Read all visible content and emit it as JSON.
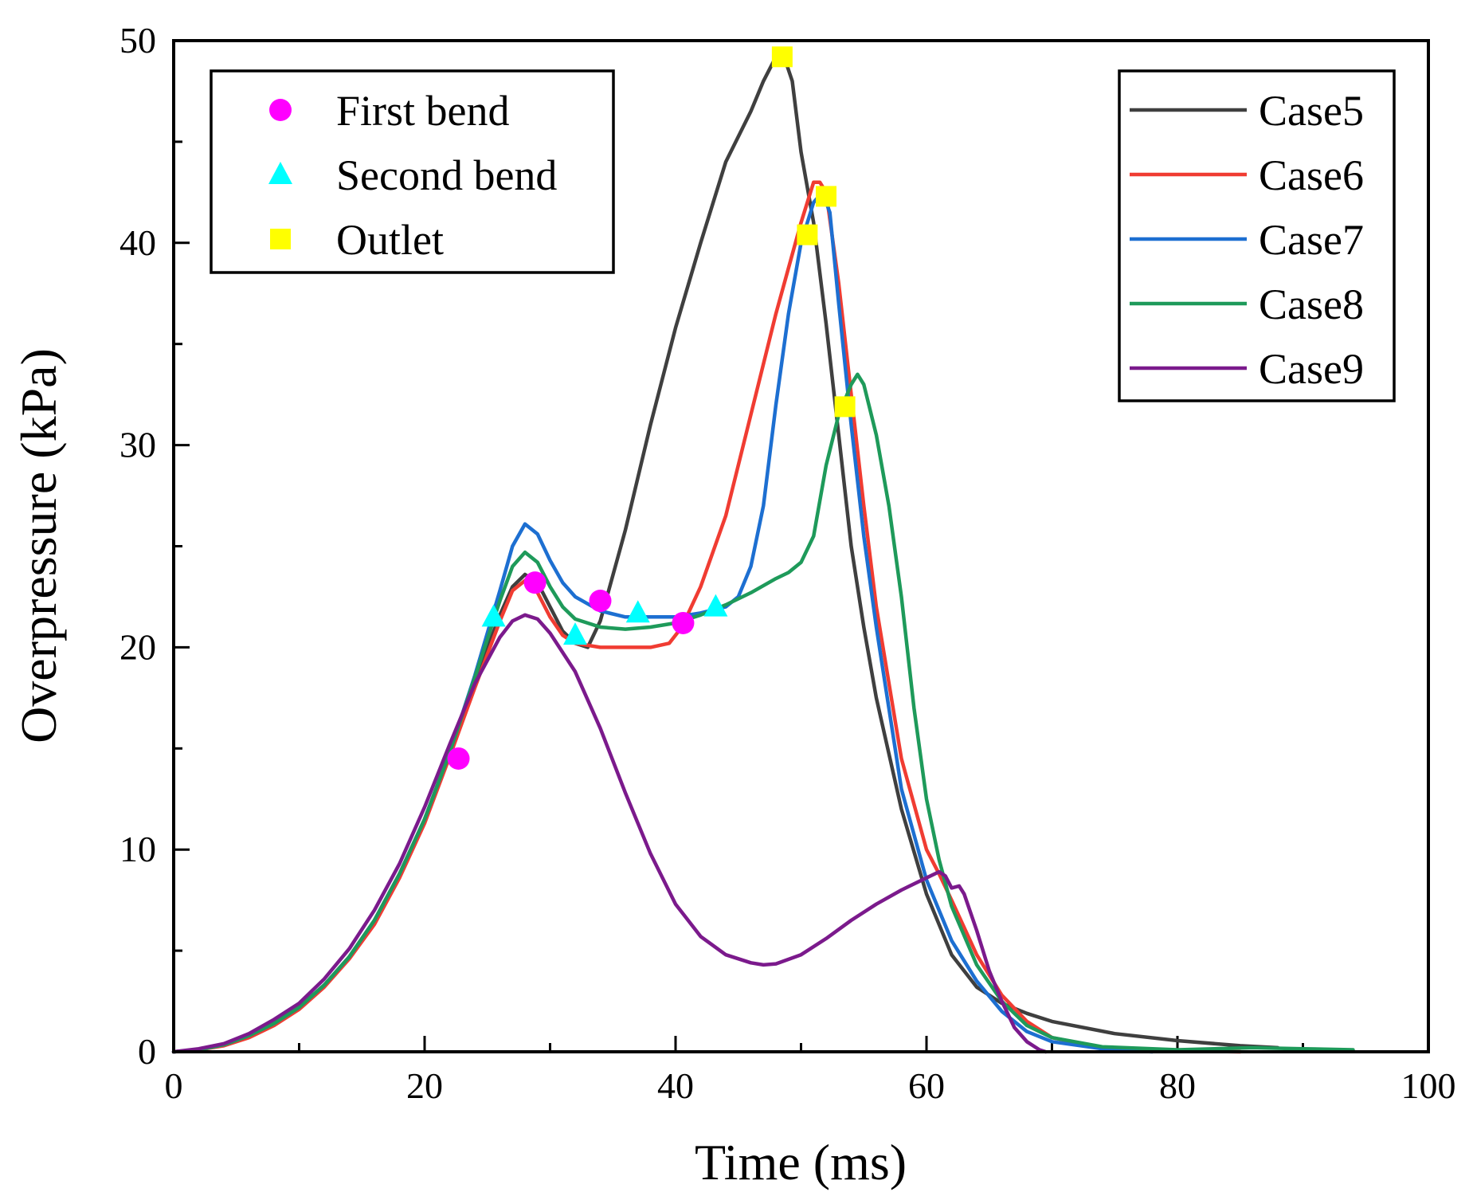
{
  "chart_data": {
    "type": "line",
    "title": "",
    "xlabel": "Time (ms)",
    "ylabel": "Overpressure (kPa)",
    "xlim": [
      0,
      100
    ],
    "ylim": [
      0,
      50
    ],
    "xticks": [
      0,
      20,
      40,
      60,
      80,
      100
    ],
    "yticks": [
      0,
      10,
      20,
      30,
      40,
      50
    ],
    "grid": false,
    "series": [
      {
        "name": "Case5",
        "color": "#3f3f3f",
        "points": [
          [
            0,
            0
          ],
          [
            2,
            0.1
          ],
          [
            4,
            0.35
          ],
          [
            6,
            0.8
          ],
          [
            8,
            1.4
          ],
          [
            10,
            2.2
          ],
          [
            12,
            3.3
          ],
          [
            14,
            4.7
          ],
          [
            16,
            6.5
          ],
          [
            18,
            8.8
          ],
          [
            20,
            11.5
          ],
          [
            22,
            14.8
          ],
          [
            24,
            18.3
          ],
          [
            26,
            21.6
          ],
          [
            27,
            23.0
          ],
          [
            28,
            23.6
          ],
          [
            29,
            23.2
          ],
          [
            30,
            22.0
          ],
          [
            31,
            20.8
          ],
          [
            32,
            20.2
          ],
          [
            33,
            20.0
          ],
          [
            34,
            21.3
          ],
          [
            36,
            25.8
          ],
          [
            38,
            31.0
          ],
          [
            40,
            35.8
          ],
          [
            42,
            40.0
          ],
          [
            44,
            44.0
          ],
          [
            46,
            46.5
          ],
          [
            47,
            48.0
          ],
          [
            48,
            49.2
          ],
          [
            48.6,
            49.3
          ],
          [
            49.3,
            48.0
          ],
          [
            50,
            44.5
          ],
          [
            51,
            41.0
          ],
          [
            52,
            36.0
          ],
          [
            53,
            30.5
          ],
          [
            54,
            25.0
          ],
          [
            55,
            21.0
          ],
          [
            56,
            17.5
          ],
          [
            58,
            12.0
          ],
          [
            60,
            7.8
          ],
          [
            62,
            4.8
          ],
          [
            64,
            3.2
          ],
          [
            66,
            2.4
          ],
          [
            68,
            1.9
          ],
          [
            70,
            1.5
          ],
          [
            75,
            0.9
          ],
          [
            80,
            0.55
          ],
          [
            85,
            0.3
          ],
          [
            88,
            0.2
          ]
        ]
      },
      {
        "name": "Case6",
        "color": "#f03c32",
        "points": [
          [
            0,
            0
          ],
          [
            2,
            0.1
          ],
          [
            4,
            0.3
          ],
          [
            6,
            0.7
          ],
          [
            8,
            1.3
          ],
          [
            10,
            2.1
          ],
          [
            12,
            3.2
          ],
          [
            14,
            4.6
          ],
          [
            16,
            6.3
          ],
          [
            18,
            8.6
          ],
          [
            20,
            11.3
          ],
          [
            22,
            14.6
          ],
          [
            24,
            18.0
          ],
          [
            26,
            21.3
          ],
          [
            27,
            22.8
          ],
          [
            28,
            23.3
          ],
          [
            29,
            22.7
          ],
          [
            30,
            21.5
          ],
          [
            31,
            20.6
          ],
          [
            32,
            20.2
          ],
          [
            34,
            20.0
          ],
          [
            36,
            20.0
          ],
          [
            38,
            20.0
          ],
          [
            39.5,
            20.2
          ],
          [
            40.5,
            21.0
          ],
          [
            42,
            23.0
          ],
          [
            44,
            26.5
          ],
          [
            46,
            31.5
          ],
          [
            48,
            36.5
          ],
          [
            50,
            41.0
          ],
          [
            51,
            43.0
          ],
          [
            51.5,
            43.0
          ],
          [
            52,
            42.5
          ],
          [
            53,
            38.0
          ],
          [
            54,
            32.5
          ],
          [
            55,
            27.0
          ],
          [
            56,
            22.0
          ],
          [
            58,
            14.5
          ],
          [
            60,
            10.0
          ],
          [
            61,
            8.8
          ],
          [
            62,
            7.5
          ],
          [
            64,
            4.8
          ],
          [
            66,
            2.8
          ],
          [
            68,
            1.5
          ],
          [
            70,
            0.7
          ],
          [
            74,
            0.2
          ],
          [
            80,
            0.05
          ],
          [
            85,
            0.0
          ]
        ]
      },
      {
        "name": "Case7",
        "color": "#1d6fd1",
        "points": [
          [
            0,
            0
          ],
          [
            2,
            0.1
          ],
          [
            4,
            0.35
          ],
          [
            6,
            0.8
          ],
          [
            8,
            1.4
          ],
          [
            10,
            2.2
          ],
          [
            12,
            3.3
          ],
          [
            14,
            4.7
          ],
          [
            16,
            6.5
          ],
          [
            18,
            8.8
          ],
          [
            20,
            11.5
          ],
          [
            22,
            14.8
          ],
          [
            24,
            18.6
          ],
          [
            26,
            22.8
          ],
          [
            27,
            25.0
          ],
          [
            28,
            26.1
          ],
          [
            29,
            25.6
          ],
          [
            30,
            24.3
          ],
          [
            31,
            23.2
          ],
          [
            32,
            22.5
          ],
          [
            34,
            21.8
          ],
          [
            36,
            21.5
          ],
          [
            38,
            21.5
          ],
          [
            40,
            21.5
          ],
          [
            42,
            21.7
          ],
          [
            44,
            22.0
          ],
          [
            45,
            22.5
          ],
          [
            46,
            24.0
          ],
          [
            47,
            27.0
          ],
          [
            48,
            32.0
          ],
          [
            49,
            36.5
          ],
          [
            50,
            40.0
          ],
          [
            51,
            42.0
          ],
          [
            51.7,
            42.5
          ],
          [
            52.3,
            41.5
          ],
          [
            53,
            37.0
          ],
          [
            54,
            31.0
          ],
          [
            55,
            25.5
          ],
          [
            56,
            21.0
          ],
          [
            58,
            13.0
          ],
          [
            60,
            8.5
          ],
          [
            62,
            5.5
          ],
          [
            64,
            3.5
          ],
          [
            66,
            2.0
          ],
          [
            68,
            1.0
          ],
          [
            70,
            0.5
          ],
          [
            74,
            0.15
          ],
          [
            78,
            0.0
          ]
        ]
      },
      {
        "name": "Case8",
        "color": "#1e9a5a",
        "points": [
          [
            0,
            0
          ],
          [
            2,
            0.1
          ],
          [
            4,
            0.35
          ],
          [
            6,
            0.8
          ],
          [
            8,
            1.4
          ],
          [
            10,
            2.2
          ],
          [
            12,
            3.3
          ],
          [
            14,
            4.7
          ],
          [
            16,
            6.5
          ],
          [
            18,
            8.8
          ],
          [
            20,
            11.5
          ],
          [
            22,
            14.8
          ],
          [
            24,
            18.5
          ],
          [
            26,
            22.3
          ],
          [
            27,
            24.0
          ],
          [
            28,
            24.7
          ],
          [
            29,
            24.2
          ],
          [
            30,
            23.0
          ],
          [
            31,
            22.0
          ],
          [
            32,
            21.4
          ],
          [
            34,
            21.0
          ],
          [
            36,
            20.9
          ],
          [
            38,
            21.0
          ],
          [
            40,
            21.2
          ],
          [
            42,
            21.6
          ],
          [
            44,
            22.1
          ],
          [
            46,
            22.7
          ],
          [
            48,
            23.4
          ],
          [
            49,
            23.7
          ],
          [
            50,
            24.2
          ],
          [
            51,
            25.5
          ],
          [
            52,
            29.0
          ],
          [
            53,
            31.5
          ],
          [
            54,
            33.0
          ],
          [
            54.5,
            33.5
          ],
          [
            55,
            33.0
          ],
          [
            56,
            30.5
          ],
          [
            57,
            27.0
          ],
          [
            58,
            22.5
          ],
          [
            59,
            17.0
          ],
          [
            60,
            12.5
          ],
          [
            61,
            9.5
          ],
          [
            62,
            7.2
          ],
          [
            64,
            4.3
          ],
          [
            66,
            2.5
          ],
          [
            68,
            1.3
          ],
          [
            70,
            0.7
          ],
          [
            74,
            0.25
          ],
          [
            80,
            0.1
          ],
          [
            86,
            0.2
          ],
          [
            90,
            0.15
          ],
          [
            94,
            0.1
          ]
        ]
      },
      {
        "name": "Case9",
        "color": "#7b1a8c",
        "points": [
          [
            0,
            0
          ],
          [
            2,
            0.15
          ],
          [
            4,
            0.4
          ],
          [
            6,
            0.9
          ],
          [
            8,
            1.6
          ],
          [
            10,
            2.4
          ],
          [
            12,
            3.6
          ],
          [
            14,
            5.1
          ],
          [
            16,
            7.0
          ],
          [
            18,
            9.3
          ],
          [
            20,
            12.1
          ],
          [
            22,
            15.2
          ],
          [
            24,
            18.2
          ],
          [
            26,
            20.5
          ],
          [
            27,
            21.3
          ],
          [
            28,
            21.6
          ],
          [
            29,
            21.4
          ],
          [
            30,
            20.7
          ],
          [
            32,
            18.8
          ],
          [
            34,
            16.0
          ],
          [
            36,
            12.8
          ],
          [
            38,
            9.8
          ],
          [
            40,
            7.3
          ],
          [
            42,
            5.7
          ],
          [
            44,
            4.8
          ],
          [
            46,
            4.4
          ],
          [
            47,
            4.3
          ],
          [
            48,
            4.35
          ],
          [
            50,
            4.8
          ],
          [
            52,
            5.6
          ],
          [
            54,
            6.5
          ],
          [
            56,
            7.3
          ],
          [
            58,
            8.0
          ],
          [
            60,
            8.6
          ],
          [
            61,
            8.9
          ],
          [
            61.5,
            8.7
          ],
          [
            62,
            8.1
          ],
          [
            62.6,
            8.2
          ],
          [
            63,
            7.8
          ],
          [
            64,
            6.0
          ],
          [
            65,
            4.0
          ],
          [
            66,
            2.5
          ],
          [
            67,
            1.2
          ],
          [
            68,
            0.5
          ],
          [
            69,
            0.1
          ],
          [
            69.5,
            0.0
          ]
        ]
      }
    ],
    "markers": [
      {
        "name": "First bend",
        "shape": "circle",
        "color": "#ff00ff",
        "points": [
          [
            22.7,
            14.5
          ],
          [
            28.8,
            23.2
          ],
          [
            34.0,
            22.3
          ],
          [
            40.6,
            21.2
          ]
        ]
      },
      {
        "name": "Second bend",
        "shape": "triangle",
        "color": "#00ffff",
        "points": [
          [
            25.5,
            21.5
          ],
          [
            32.0,
            20.6
          ],
          [
            37.0,
            21.7
          ],
          [
            43.2,
            22.0
          ]
        ]
      },
      {
        "name": "Outlet",
        "shape": "square",
        "color": "#ffff00",
        "points": [
          [
            48.5,
            49.2
          ],
          [
            50.5,
            40.4
          ],
          [
            52.0,
            42.3
          ],
          [
            53.5,
            31.9
          ]
        ]
      }
    ],
    "legends": [
      {
        "placement": "top-left",
        "entries": [
          "First bend",
          "Second bend",
          "Outlet"
        ]
      },
      {
        "placement": "top-right",
        "entries": [
          "Case5",
          "Case6",
          "Case7",
          "Case8",
          "Case9"
        ]
      }
    ]
  }
}
